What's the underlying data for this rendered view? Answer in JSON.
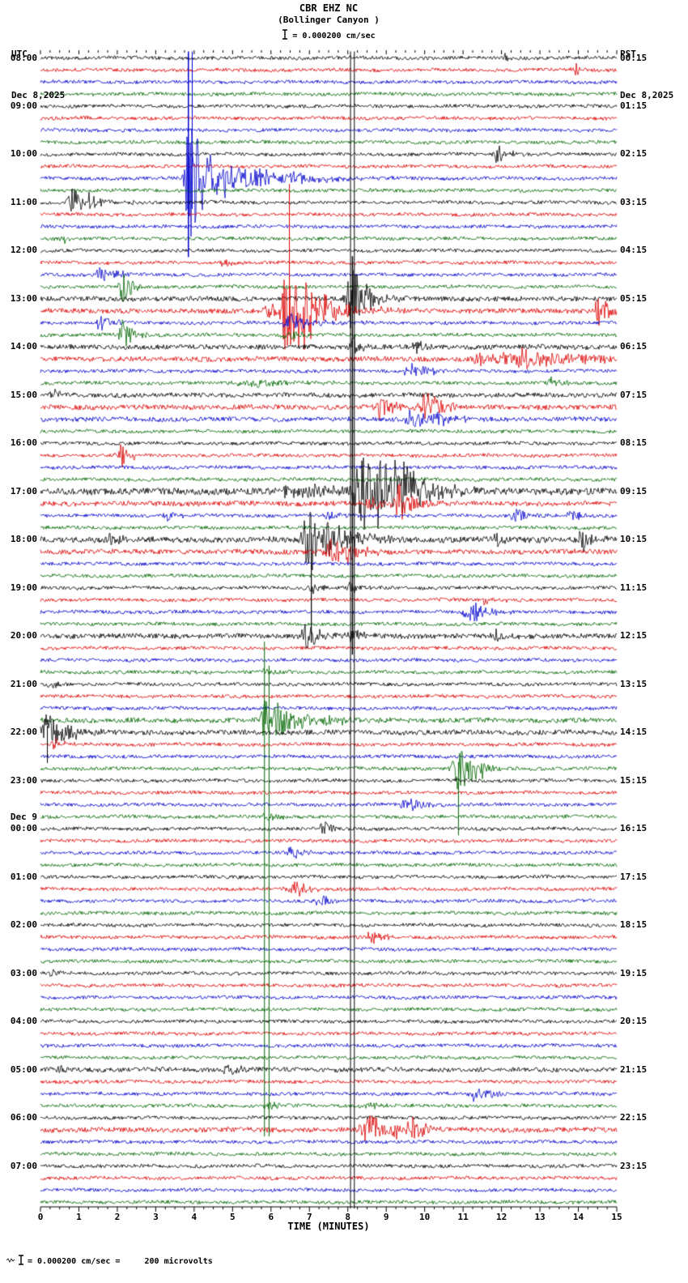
{
  "header": {
    "station": "CBR EHZ NC",
    "location": "(Bollinger Canyon )",
    "scale_label": "= 0.000200 cm/sec",
    "left_tz": "UTC",
    "left_date": "Dec 8,2025",
    "right_tz": "PST",
    "right_date": "Dec 8,2025"
  },
  "axis": {
    "xlabel": "TIME (MINUTES)",
    "x_ticks": [
      "0",
      "1",
      "2",
      "3",
      "4",
      "5",
      "6",
      "7",
      "8",
      "9",
      "10",
      "11",
      "12",
      "13",
      "14",
      "15"
    ]
  },
  "footer": {
    "scale_note": "= 0.000200 cm/sec =     200 microvolts"
  },
  "chart_data": {
    "type": "line",
    "subtype": "seismogram-helicorder",
    "title": "CBR EHZ NC (Bollinger Canyon)",
    "minutes_per_row": 15,
    "row_count": 96,
    "x_range": [
      0,
      15
    ],
    "trace_colors_cycle": [
      "#000000",
      "#dd0000",
      "#0000cc",
      "#006600"
    ],
    "utc_labels": [
      {
        "row": 0,
        "text": "08:00"
      },
      {
        "row": 4,
        "text": "09:00"
      },
      {
        "row": 8,
        "text": "10:00"
      },
      {
        "row": 12,
        "text": "11:00"
      },
      {
        "row": 16,
        "text": "12:00"
      },
      {
        "row": 20,
        "text": "13:00"
      },
      {
        "row": 24,
        "text": "14:00"
      },
      {
        "row": 28,
        "text": "15:00"
      },
      {
        "row": 32,
        "text": "16:00"
      },
      {
        "row": 36,
        "text": "17:00"
      },
      {
        "row": 40,
        "text": "18:00"
      },
      {
        "row": 44,
        "text": "19:00"
      },
      {
        "row": 48,
        "text": "20:00"
      },
      {
        "row": 52,
        "text": "21:00"
      },
      {
        "row": 56,
        "text": "22:00"
      },
      {
        "row": 60,
        "text": "23:00"
      },
      {
        "row": 64,
        "text": "00:00",
        "date": "Dec 9"
      },
      {
        "row": 68,
        "text": "01:00"
      },
      {
        "row": 72,
        "text": "02:00"
      },
      {
        "row": 76,
        "text": "03:00"
      },
      {
        "row": 80,
        "text": "04:00"
      },
      {
        "row": 84,
        "text": "05:00"
      },
      {
        "row": 88,
        "text": "06:00"
      },
      {
        "row": 92,
        "text": "07:00"
      }
    ],
    "pst_labels": [
      {
        "row": 0,
        "text": "00:15"
      },
      {
        "row": 4,
        "text": "01:15"
      },
      {
        "row": 8,
        "text": "02:15"
      },
      {
        "row": 12,
        "text": "03:15"
      },
      {
        "row": 16,
        "text": "04:15"
      },
      {
        "row": 20,
        "text": "05:15"
      },
      {
        "row": 24,
        "text": "06:15"
      },
      {
        "row": 28,
        "text": "07:15"
      },
      {
        "row": 32,
        "text": "08:15"
      },
      {
        "row": 36,
        "text": "09:15"
      },
      {
        "row": 40,
        "text": "10:15"
      },
      {
        "row": 44,
        "text": "11:15"
      },
      {
        "row": 48,
        "text": "12:15"
      },
      {
        "row": 52,
        "text": "13:15"
      },
      {
        "row": 56,
        "text": "14:15"
      },
      {
        "row": 60,
        "text": "15:15"
      },
      {
        "row": 64,
        "text": "16:15"
      },
      {
        "row": 68,
        "text": "17:15"
      },
      {
        "row": 72,
        "text": "18:15"
      },
      {
        "row": 76,
        "text": "19:15"
      },
      {
        "row": 80,
        "text": "20:15"
      },
      {
        "row": 84,
        "text": "21:15"
      },
      {
        "row": 88,
        "text": "22:15"
      },
      {
        "row": 92,
        "text": "23:15"
      }
    ],
    "noise_default": 2.1,
    "noise_overrides": {
      "20": 3,
      "21": 3,
      "24": 3,
      "25": 3,
      "28": 2.8,
      "29": 3,
      "30": 2.8,
      "36": 4,
      "37": 3,
      "40": 3.5,
      "41": 3,
      "48": 3,
      "55": 3,
      "56": 3,
      "84": 2.8,
      "89": 3
    },
    "events": [
      {
        "row": 0,
        "x": 12.1,
        "amp": 5,
        "width": 0.15
      },
      {
        "row": 1,
        "x": 13.9,
        "amp": 10,
        "width": 0.2
      },
      {
        "row": 8,
        "x": 11.9,
        "amp": 14,
        "width": 0.25
      },
      {
        "row": 10,
        "x": 3.9,
        "amp": 85,
        "width": 0.3
      },
      {
        "row": 10,
        "x": 4.35,
        "amp": 28,
        "width": 0.5
      },
      {
        "row": 10,
        "x": 5.0,
        "amp": 15,
        "width": 0.8
      },
      {
        "row": 10,
        "x": 5.9,
        "amp": 8,
        "width": 1.0
      },
      {
        "row": 10,
        "x": 6.9,
        "amp": 4,
        "width": 1.2
      },
      {
        "row": 12,
        "x": 0.85,
        "amp": 20,
        "width": 0.35
      },
      {
        "row": 12,
        "x": 1.3,
        "amp": 8,
        "width": 0.5
      },
      {
        "row": 15,
        "x": 0.6,
        "amp": 9,
        "width": 0.15
      },
      {
        "row": 17,
        "x": 4.75,
        "amp": 8,
        "width": 0.15
      },
      {
        "row": 18,
        "x": 1.55,
        "amp": 11,
        "width": 0.25
      },
      {
        "row": 18,
        "x": 1.95,
        "amp": 7,
        "width": 0.2
      },
      {
        "row": 19,
        "x": 2.15,
        "amp": 26,
        "width": 0.2
      },
      {
        "row": 20,
        "x": 8.1,
        "amp": 48,
        "width": 0.3
      },
      {
        "row": 20,
        "x": 8.45,
        "amp": 12,
        "width": 0.4
      },
      {
        "row": 21,
        "x": 5.95,
        "amp": 12,
        "width": 0.25
      },
      {
        "row": 21,
        "x": 6.45,
        "amp": 70,
        "width": 0.35
      },
      {
        "row": 21,
        "x": 6.85,
        "amp": 32,
        "width": 0.6
      },
      {
        "row": 21,
        "x": 7.4,
        "amp": 12,
        "width": 0.8
      },
      {
        "row": 21,
        "x": 14.55,
        "amp": 16,
        "width": 0.3
      },
      {
        "row": 22,
        "x": 1.55,
        "amp": 9,
        "width": 0.3
      },
      {
        "row": 22,
        "x": 6.55,
        "amp": 11,
        "width": 0.6
      },
      {
        "row": 23,
        "x": 2.15,
        "amp": 20,
        "width": 0.25
      },
      {
        "row": 23,
        "x": 6.5,
        "amp": 6,
        "width": 0.5
      },
      {
        "row": 24,
        "x": 8.12,
        "amp": 16,
        "width": 0.2
      },
      {
        "row": 24,
        "x": 9.8,
        "amp": 7,
        "width": 0.3
      },
      {
        "row": 25,
        "x": 11.45,
        "amp": 9,
        "width": 0.4
      },
      {
        "row": 25,
        "x": 12.6,
        "amp": 12,
        "width": 1.6
      },
      {
        "row": 26,
        "x": 9.7,
        "amp": 9,
        "width": 0.5
      },
      {
        "row": 27,
        "x": 5.6,
        "amp": 5,
        "width": 1.2
      },
      {
        "row": 27,
        "x": 13.3,
        "amp": 7,
        "width": 0.3
      },
      {
        "row": 28,
        "x": 0.3,
        "amp": 7,
        "width": 0.2
      },
      {
        "row": 29,
        "x": 8.85,
        "amp": 18,
        "width": 0.3
      },
      {
        "row": 29,
        "x": 10.05,
        "amp": 20,
        "width": 0.4
      },
      {
        "row": 30,
        "x": 9.7,
        "amp": 11,
        "width": 0.6
      },
      {
        "row": 30,
        "x": 10.35,
        "amp": 8,
        "width": 0.4
      },
      {
        "row": 33,
        "x": 2.1,
        "amp": 18,
        "width": 0.25
      },
      {
        "row": 36,
        "x": 6.4,
        "amp": 13,
        "width": 0.2
      },
      {
        "row": 36,
        "x": 7.2,
        "amp": 8,
        "width": 1.0
      },
      {
        "row": 36,
        "x": 8.35,
        "amp": 52,
        "width": 0.5
      },
      {
        "row": 36,
        "x": 8.9,
        "amp": 45,
        "width": 0.7
      },
      {
        "row": 36,
        "x": 9.35,
        "amp": 28,
        "width": 0.5
      },
      {
        "row": 36,
        "x": 10.1,
        "amp": 8,
        "width": 0.8
      },
      {
        "row": 37,
        "x": 8.6,
        "amp": 10,
        "width": 0.3
      },
      {
        "row": 37,
        "x": 9.35,
        "amp": 26,
        "width": 0.35
      },
      {
        "row": 38,
        "x": 3.3,
        "amp": 8,
        "width": 0.3
      },
      {
        "row": 38,
        "x": 7.5,
        "amp": 6,
        "width": 0.4
      },
      {
        "row": 38,
        "x": 12.4,
        "amp": 9,
        "width": 0.35
      },
      {
        "row": 38,
        "x": 13.85,
        "amp": 6,
        "width": 0.3
      },
      {
        "row": 40,
        "x": 1.85,
        "amp": 11,
        "width": 0.2
      },
      {
        "row": 40,
        "x": 7.0,
        "amp": 42,
        "width": 0.4
      },
      {
        "row": 40,
        "x": 7.4,
        "amp": 26,
        "width": 0.5
      },
      {
        "row": 40,
        "x": 8.0,
        "amp": 12,
        "width": 0.7
      },
      {
        "row": 40,
        "x": 11.9,
        "amp": 7,
        "width": 0.25
      },
      {
        "row": 40,
        "x": 14.1,
        "amp": 15,
        "width": 0.25
      },
      {
        "row": 41,
        "x": 7.6,
        "amp": 16,
        "width": 0.5
      },
      {
        "row": 41,
        "x": 8.05,
        "amp": 10,
        "width": 0.35
      },
      {
        "row": 44,
        "x": 7.1,
        "amp": 7,
        "width": 0.3
      },
      {
        "row": 44,
        "x": 8.12,
        "amp": 9,
        "width": 0.25
      },
      {
        "row": 45,
        "x": 11.6,
        "amp": 6,
        "width": 0.4
      },
      {
        "row": 46,
        "x": 11.25,
        "amp": 13,
        "width": 0.5
      },
      {
        "row": 48,
        "x": 6.95,
        "amp": 16,
        "width": 0.35
      },
      {
        "row": 48,
        "x": 8.1,
        "amp": 11,
        "width": 0.3
      },
      {
        "row": 48,
        "x": 11.85,
        "amp": 7,
        "width": 0.3
      },
      {
        "row": 51,
        "x": 5.9,
        "amp": 5,
        "width": 0.3
      },
      {
        "row": 52,
        "x": 0.3,
        "amp": 7,
        "width": 0.2
      },
      {
        "row": 55,
        "x": 5.88,
        "amp": 32,
        "width": 0.3
      },
      {
        "row": 55,
        "x": 6.15,
        "amp": 18,
        "width": 0.5
      },
      {
        "row": 55,
        "x": 6.7,
        "amp": 9,
        "width": 0.8
      },
      {
        "row": 55,
        "x": 7.6,
        "amp": 4,
        "width": 0.8
      },
      {
        "row": 56,
        "x": 0.18,
        "amp": 26,
        "width": 0.35
      },
      {
        "row": 56,
        "x": 0.65,
        "amp": 9,
        "width": 0.5
      },
      {
        "row": 57,
        "x": 0.35,
        "amp": 8,
        "width": 0.2
      },
      {
        "row": 59,
        "x": 10.88,
        "amp": 28,
        "width": 0.35
      },
      {
        "row": 59,
        "x": 11.2,
        "amp": 13,
        "width": 0.5
      },
      {
        "row": 62,
        "x": 9.55,
        "amp": 10,
        "width": 0.4
      },
      {
        "row": 63,
        "x": 5.9,
        "amp": 8,
        "width": 0.3
      },
      {
        "row": 64,
        "x": 7.35,
        "amp": 12,
        "width": 0.2
      },
      {
        "row": 66,
        "x": 6.55,
        "amp": 8,
        "width": 0.35
      },
      {
        "row": 69,
        "x": 6.6,
        "amp": 12,
        "width": 0.35
      },
      {
        "row": 70,
        "x": 7.35,
        "amp": 8,
        "width": 0.4
      },
      {
        "row": 73,
        "x": 8.6,
        "amp": 10,
        "width": 0.3
      },
      {
        "row": 76,
        "x": 0.3,
        "amp": 5,
        "width": 0.2
      },
      {
        "row": 84,
        "x": 0.5,
        "amp": 6,
        "width": 0.25
      },
      {
        "row": 84,
        "x": 4.85,
        "amp": 10,
        "width": 0.25
      },
      {
        "row": 86,
        "x": 11.35,
        "amp": 10,
        "width": 0.4
      },
      {
        "row": 87,
        "x": 5.9,
        "amp": 7,
        "width": 0.25
      },
      {
        "row": 87,
        "x": 8.5,
        "amp": 6,
        "width": 0.3
      },
      {
        "row": 89,
        "x": 8.55,
        "amp": 20,
        "width": 0.5
      },
      {
        "row": 89,
        "x": 8.95,
        "amp": 14,
        "width": 0.3
      },
      {
        "row": 89,
        "x": 9.65,
        "amp": 18,
        "width": 0.3
      }
    ],
    "vertical_artifacts": [
      {
        "x": 3.85,
        "row_start": 0,
        "row_end": 16,
        "color": "#0000cc",
        "line_width": 1.5
      },
      {
        "x": 3.95,
        "row_start": 0,
        "row_end": 12,
        "color": "#0000cc",
        "line_width": 1
      },
      {
        "x": 8.07,
        "row_start": 0,
        "row_end": 95,
        "color": "#000000",
        "line_width": 1
      },
      {
        "x": 8.17,
        "row_start": 0,
        "row_end": 95,
        "color": "#000000",
        "line_width": 1
      },
      {
        "x": 8.12,
        "row_start": 17,
        "row_end": 49,
        "color": "#000000",
        "line_width": 1.5
      },
      {
        "x": 6.48,
        "row_start": 11,
        "row_end": 22,
        "color": "#dd0000",
        "line_width": 1
      },
      {
        "x": 7.05,
        "row_start": 40,
        "row_end": 48,
        "color": "#000000",
        "line_width": 1.2
      },
      {
        "x": 5.83,
        "row_start": 49,
        "row_end": 89,
        "color": "#006600",
        "line_width": 1
      },
      {
        "x": 5.95,
        "row_start": 51,
        "row_end": 89,
        "color": "#006600",
        "line_width": 1
      },
      {
        "x": 10.88,
        "row_start": 59,
        "row_end": 64,
        "color": "#006600",
        "line_width": 1
      },
      {
        "x": 0.18,
        "row_start": 56,
        "row_end": 58,
        "color": "#000000",
        "line_width": 1
      }
    ]
  }
}
